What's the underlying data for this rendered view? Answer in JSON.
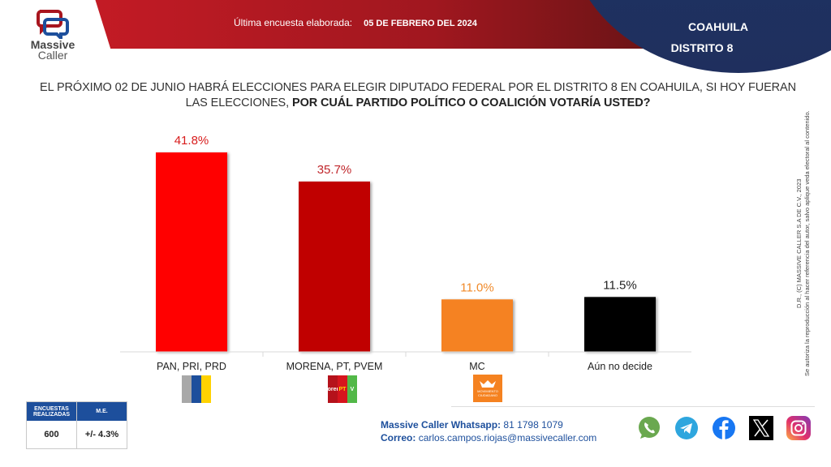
{
  "brand": {
    "name_line1": "Massive",
    "name_line2": "Caller"
  },
  "header": {
    "survey_label": "Última encuesta elaborada:",
    "survey_date": "05 DE FEBRERO DEL 2024",
    "state": "COAHUILA",
    "district": "DISTRITO 8"
  },
  "question": {
    "normal": "EL PRÓXIMO 02 DE JUNIO HABRÁ ELECCIONES PARA ELEGIR DIPUTADO FEDERAL POR EL DISTRITO 8 EN COAHUILA, SI HOY FUERAN LAS ELECCIONES, ",
    "bold": "POR CUÁL PARTIDO POLÍTICO O COALICIÓN  VOTARÍA USTED?"
  },
  "chart_data": {
    "type": "bar",
    "title": "POR CUÁL PARTIDO POLÍTICO O COALICIÓN VOTARÍA USTED?",
    "categories": [
      "PAN, PRI, PRD",
      "MORENA, PT, PVEM",
      "MC",
      "Aún no decide"
    ],
    "values": [
      41.8,
      35.7,
      11.0,
      11.5
    ],
    "labels": [
      "41.8%",
      "35.7%",
      "11.0%",
      "11.5%"
    ],
    "colors": [
      "#ff0000",
      "#c00000",
      "#f58220",
      "#000000"
    ],
    "label_colors": [
      "#d81c1c",
      "#c0262b",
      "#f08a2a",
      "#222222"
    ],
    "xlabel": "",
    "ylabel": "",
    "ylim": [
      0,
      45
    ],
    "grid": false,
    "legend": "none"
  },
  "party_logos": {
    "pan_pri_prd": {
      "name": "PAN PRI PRD coalition logo",
      "colors": [
        "#a8a8a8",
        "#1d4f9c",
        "#ffd200"
      ]
    },
    "morena_pt_pvem": {
      "name": "MORENA PT PVEM coalition logo",
      "parts": [
        "morena",
        "PT",
        "V"
      ],
      "colors": [
        "#b5121b",
        "#d6141d",
        "#52b848"
      ]
    },
    "mc": {
      "name": "MC logo",
      "text": "MOVIMIENTO CIUDADANO",
      "color": "#f58220"
    }
  },
  "stats": {
    "surveys_header": "ENCUESTAS REALIZADAS",
    "me_header": "M.E.",
    "surveys_value": "600",
    "me_value": "+/- 4.3%"
  },
  "contact": {
    "whatsapp_label": "Massive Caller Whatsapp:",
    "whatsapp_value": "81 1798 1079",
    "email_label": "Correo:",
    "email_value": "carlos.campos.riojas@massivecaller.com"
  },
  "social": [
    "whatsapp-icon",
    "telegram-icon",
    "facebook-icon",
    "x-icon",
    "instagram-icon"
  ],
  "side_note": {
    "line1": "D.R., (C) MASSIVE CALLER S.A DE C.V., 2023",
    "line2": "Se autoriza la reproducción al hacer referencia del autor, salvo aplique veda electoral al contenido."
  }
}
